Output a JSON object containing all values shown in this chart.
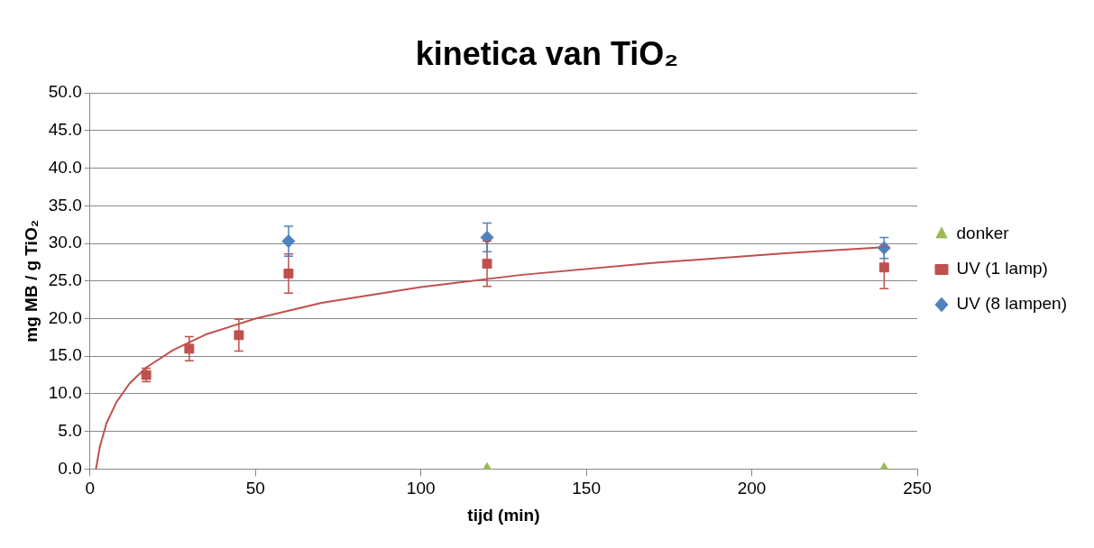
{
  "chart_data": {
    "type": "scatter",
    "title": "kinetica van TiO₂",
    "xlabel": "tijd (min)",
    "ylabel": "mg MB / g TiO₂",
    "xlim": [
      0,
      250
    ],
    "xticks": [
      0,
      50,
      100,
      150,
      200,
      250
    ],
    "ylim": [
      0,
      50
    ],
    "yticks": [
      {
        "value": 0,
        "label": "0.0"
      },
      {
        "value": 5,
        "label": "5.0"
      },
      {
        "value": 10,
        "label": "10.0"
      },
      {
        "value": 15,
        "label": "15.0"
      },
      {
        "value": 20,
        "label": "20.0"
      },
      {
        "value": 25,
        "label": "25.0"
      },
      {
        "value": 30,
        "label": "30.0"
      },
      {
        "value": 35,
        "label": "35.0"
      },
      {
        "value": 40,
        "label": "40.0"
      },
      {
        "value": 45,
        "label": "45.0"
      },
      {
        "value": 50,
        "label": "50.0"
      }
    ],
    "grid": "y",
    "legend": "right",
    "series": [
      {
        "name": "donker",
        "color": "#9bbb59",
        "marker": "triangle",
        "x": [
          120,
          240
        ],
        "values": [
          0,
          0
        ]
      },
      {
        "name": "UV (1 lamp)",
        "color": "#c0504d",
        "marker": "square",
        "x": [
          17,
          30,
          45,
          60,
          120,
          240
        ],
        "values": [
          12.5,
          16,
          17.8,
          26,
          27.3,
          26.8
        ],
        "errors": [
          0.9,
          1.6,
          2.1,
          2.6,
          3,
          2.8
        ]
      },
      {
        "name": "UV (8 lampen)",
        "color": "#4f81bd",
        "marker": "diamond",
        "x": [
          60,
          120,
          240
        ],
        "values": [
          30.3,
          30.8,
          29.4
        ],
        "errors": [
          2,
          1.9,
          1.4
        ]
      },
      {
        "type": "line",
        "color": "#c0504d",
        "marker": "none",
        "x": [
          1.8,
          2,
          3,
          5,
          8,
          12,
          17,
          25,
          35,
          50,
          70,
          100,
          130,
          170,
          210,
          240
        ],
        "values": [
          0,
          0.5,
          3,
          6.1,
          8.9,
          11.4,
          13.5,
          15.8,
          17.9,
          20,
          22.1,
          24.2,
          25.8,
          27.4,
          28.7,
          29.5
        ]
      }
    ]
  }
}
